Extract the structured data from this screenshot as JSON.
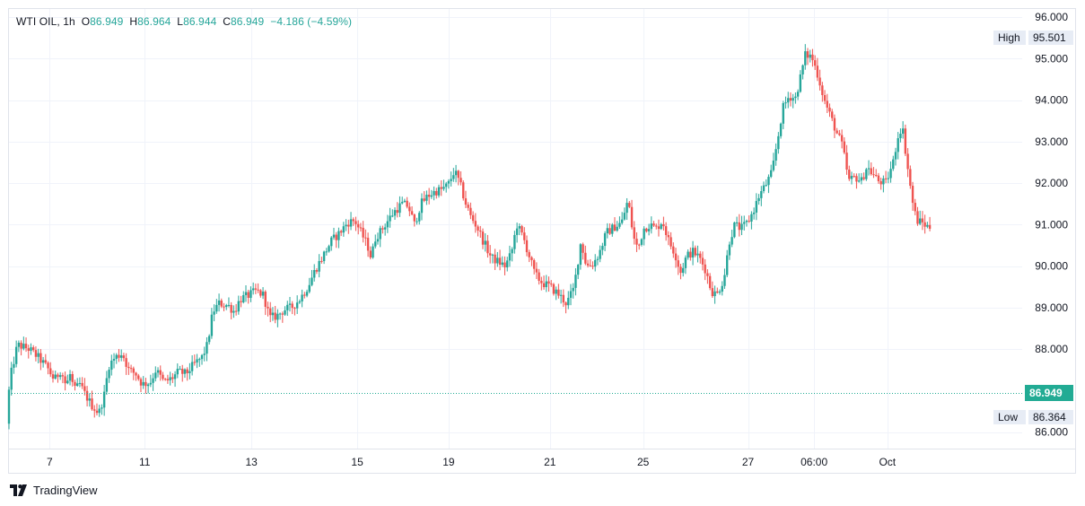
{
  "legend": {
    "symbol": "WTI OIL",
    "interval": "1h",
    "open_label": "O",
    "open": "86.949",
    "high_label": "H",
    "high": "86.964",
    "low_label": "L",
    "low": "86.944",
    "close_label": "C",
    "close": "86.949",
    "change": "−4.186 (−4.59%)"
  },
  "branding": {
    "text": "TradingView"
  },
  "colors": {
    "up": "#26a69a",
    "down": "#ef5350",
    "grid": "#f0f3fa",
    "last": "#22ab94",
    "tag_bg": "#e7ecf5"
  },
  "chart_data": {
    "type": "candlestick",
    "instrument": "WTI OIL",
    "timeframe": "1h",
    "y_axis": {
      "min": 85.6,
      "max": 96.2,
      "ticks": [
        "96.000",
        "95.000",
        "94.000",
        "93.000",
        "92.000",
        "91.000",
        "90.000",
        "89.000",
        "88.000",
        "86.000"
      ]
    },
    "x_axis": {
      "ticks": [
        {
          "label": "7",
          "t": 4.5
        },
        {
          "label": "11",
          "t": 15.0
        },
        {
          "label": "13",
          "t": 26.8
        },
        {
          "label": "15",
          "t": 38.5
        },
        {
          "label": "19",
          "t": 48.6
        },
        {
          "label": "21",
          "t": 59.8
        },
        {
          "label": "25",
          "t": 70.1
        },
        {
          "label": "27",
          "t": 81.7
        },
        {
          "label": "06:00",
          "t": 89.0
        },
        {
          "label": "Oct",
          "t": 97.1
        }
      ],
      "t_max": 112
    },
    "high_marker": {
      "label": "High",
      "value": "95.501"
    },
    "low_marker": {
      "label": "Low",
      "value": "86.364"
    },
    "last_price": {
      "value": 86.949,
      "label": "86.949"
    },
    "price_path": [
      [
        0,
        86.5
      ],
      [
        0.5,
        87.4
      ],
      [
        1.2,
        88.1
      ],
      [
        2.5,
        88.0
      ],
      [
        3.5,
        87.8
      ],
      [
        4.5,
        87.55
      ],
      [
        5.3,
        87.25
      ],
      [
        6,
        87.5
      ],
      [
        6.6,
        87.1
      ],
      [
        7,
        87.4
      ],
      [
        7.5,
        87.0
      ],
      [
        8.1,
        87.15
      ],
      [
        8.7,
        86.9
      ],
      [
        9.4,
        86.65
      ],
      [
        10.2,
        86.45
      ],
      [
        10.8,
        86.9
      ],
      [
        11.3,
        87.6
      ],
      [
        12,
        87.8
      ],
      [
        12.8,
        87.9
      ],
      [
        13.5,
        87.5
      ],
      [
        14.3,
        87.4
      ],
      [
        15,
        87.15
      ],
      [
        15.9,
        87.2
      ],
      [
        16.5,
        87.5
      ],
      [
        17.4,
        87.2
      ],
      [
        18.3,
        87.3
      ],
      [
        19,
        87.45
      ],
      [
        19.8,
        87.4
      ],
      [
        20.6,
        87.6
      ],
      [
        21.6,
        87.8
      ],
      [
        22.2,
        88.1
      ],
      [
        22.8,
        88.9
      ],
      [
        23.5,
        89.1
      ],
      [
        24.5,
        89.05
      ],
      [
        25.2,
        88.9
      ],
      [
        25.8,
        89.2
      ],
      [
        26.8,
        89.3
      ],
      [
        27.6,
        89.4
      ],
      [
        28.4,
        89.3
      ],
      [
        29.1,
        88.75
      ],
      [
        29.9,
        88.8
      ],
      [
        30.7,
        88.95
      ],
      [
        31.5,
        89.0
      ],
      [
        32.4,
        89.2
      ],
      [
        33.3,
        89.5
      ],
      [
        34.1,
        89.9
      ],
      [
        35,
        90.25
      ],
      [
        35.9,
        90.6
      ],
      [
        36.8,
        90.8
      ],
      [
        37.7,
        91.05
      ],
      [
        38.5,
        91.1
      ],
      [
        39.2,
        90.8
      ],
      [
        39.9,
        90.5
      ],
      [
        40.3,
        90.2
      ],
      [
        40.8,
        90.7
      ],
      [
        41.4,
        90.85
      ],
      [
        42,
        91.05
      ],
      [
        42.8,
        91.3
      ],
      [
        43.7,
        91.5
      ],
      [
        44.4,
        91.45
      ],
      [
        45.1,
        91.0
      ],
      [
        45.8,
        91.5
      ],
      [
        46.6,
        91.7
      ],
      [
        47.4,
        91.8
      ],
      [
        48.1,
        91.85
      ],
      [
        48.8,
        91.95
      ],
      [
        49.5,
        92.3
      ],
      [
        50.1,
        92.0
      ],
      [
        50.7,
        91.55
      ],
      [
        51.3,
        91.2
      ],
      [
        52,
        90.95
      ],
      [
        52.7,
        90.6
      ],
      [
        53.6,
        90.2
      ],
      [
        54.4,
        90.1
      ],
      [
        55.1,
        90.0
      ],
      [
        55.8,
        90.3
      ],
      [
        56.4,
        91.0
      ],
      [
        57.1,
        90.7
      ],
      [
        57.7,
        90.3
      ],
      [
        58.4,
        89.8
      ],
      [
        59.2,
        89.6
      ],
      [
        60.1,
        89.5
      ],
      [
        61.1,
        89.3
      ],
      [
        61.9,
        89.1
      ],
      [
        62.7,
        89.45
      ],
      [
        63.5,
        90.6
      ],
      [
        64.1,
        90.0
      ],
      [
        64.8,
        90.05
      ],
      [
        65.5,
        90.3
      ],
      [
        66.3,
        90.8
      ],
      [
        67.2,
        90.95
      ],
      [
        68,
        91.05
      ],
      [
        68.7,
        91.6
      ],
      [
        69.3,
        90.7
      ],
      [
        69.8,
        90.4
      ],
      [
        70.4,
        90.9
      ],
      [
        71.1,
        91.0
      ],
      [
        71.8,
        90.9
      ],
      [
        72.5,
        91.1
      ],
      [
        73.2,
        90.6
      ],
      [
        73.9,
        90.3
      ],
      [
        74.5,
        89.85
      ],
      [
        75.2,
        90.25
      ],
      [
        75.9,
        90.35
      ],
      [
        76.6,
        90.2
      ],
      [
        77.3,
        89.9
      ],
      [
        77.9,
        89.4
      ],
      [
        78.5,
        89.3
      ],
      [
        79.3,
        89.7
      ],
      [
        79.9,
        90.6
      ],
      [
        80.5,
        91.0
      ],
      [
        81.2,
        90.9
      ],
      [
        81.9,
        91.05
      ],
      [
        82.5,
        91.3
      ],
      [
        83.2,
        91.7
      ],
      [
        83.9,
        91.95
      ],
      [
        84.6,
        92.25
      ],
      [
        85.2,
        93.0
      ],
      [
        85.8,
        93.8
      ],
      [
        86.5,
        94.1
      ],
      [
        87.2,
        94.05
      ],
      [
        87.7,
        94.5
      ],
      [
        88.3,
        95.1
      ],
      [
        89,
        95.05
      ],
      [
        89.7,
        94.6
      ],
      [
        90.4,
        94.0
      ],
      [
        91.1,
        93.6
      ],
      [
        91.8,
        93.2
      ],
      [
        92.4,
        92.9
      ],
      [
        93.1,
        92.05
      ],
      [
        93.8,
        92.15
      ],
      [
        94.5,
        92.05
      ],
      [
        95.1,
        92.4
      ],
      [
        95.8,
        92.2
      ],
      [
        96.4,
        92.05
      ],
      [
        97.2,
        92.0
      ],
      [
        98,
        92.5
      ],
      [
        98.5,
        93.1
      ],
      [
        99,
        93.4
      ],
      [
        99.6,
        92.4
      ],
      [
        100.1,
        91.6
      ],
      [
        100.6,
        91.1
      ],
      [
        101.2,
        91.05
      ],
      [
        101.8,
        90.95
      ]
    ]
  }
}
